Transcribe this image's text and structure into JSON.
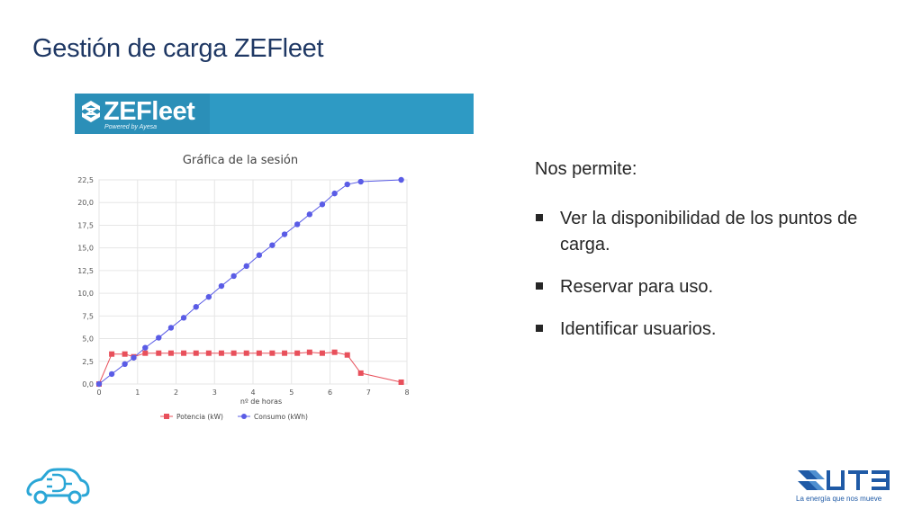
{
  "slide": {
    "title": "Gestión de carga ZEFleet"
  },
  "logo": {
    "brand": "ZEFleet",
    "tagline": "Powered by Ayesa"
  },
  "content": {
    "intro": "Nos permite:",
    "bullets": [
      "Ver la disponibilidad de los puntos de carga.",
      "Reservar para uso.",
      "Identificar usuarios."
    ]
  },
  "footer": {
    "company_logo": "UTE",
    "company_tagline": "La energía que nos mueve"
  },
  "colors": {
    "title": "#1f3864",
    "banner": "#2e9ac4",
    "potencia": "#e8505b",
    "consumo": "#5a5ce6"
  },
  "chart_data": {
    "type": "line",
    "title": "Gráfica de la sesión",
    "xlabel": "nº de horas",
    "ylabel": "",
    "xlim": [
      0,
      8
    ],
    "ylim": [
      0,
      22.5
    ],
    "xticks": [
      "0",
      "1",
      "2",
      "3",
      "4",
      "5",
      "6",
      "7",
      "8"
    ],
    "yticks": [
      "0,0",
      "2,5",
      "5,0",
      "7,5",
      "10,0",
      "12,5",
      "15,0",
      "17,5",
      "20,0",
      "22,5"
    ],
    "grid": true,
    "legend_position": "bottom",
    "series": [
      {
        "name": "Potencia (kW)",
        "marker": "square",
        "color": "#e8505b",
        "x": [
          0,
          0.33,
          0.67,
          0.9,
          1.2,
          1.55,
          1.87,
          2.2,
          2.52,
          2.85,
          3.18,
          3.5,
          3.83,
          4.16,
          4.5,
          4.82,
          5.15,
          5.47,
          5.8,
          6.12,
          6.45,
          6.8,
          7.85
        ],
        "y": [
          0,
          3.3,
          3.3,
          3.0,
          3.4,
          3.4,
          3.4,
          3.4,
          3.4,
          3.4,
          3.4,
          3.4,
          3.4,
          3.4,
          3.4,
          3.4,
          3.4,
          3.5,
          3.4,
          3.5,
          3.2,
          1.2,
          0.2
        ]
      },
      {
        "name": "Consumo (kWh)",
        "marker": "circle",
        "color": "#5a5ce6",
        "x": [
          0,
          0.33,
          0.67,
          0.9,
          1.2,
          1.55,
          1.87,
          2.2,
          2.52,
          2.85,
          3.18,
          3.5,
          3.83,
          4.16,
          4.5,
          4.82,
          5.15,
          5.47,
          5.8,
          6.12,
          6.45,
          6.8,
          7.85
        ],
        "y": [
          0,
          1.1,
          2.2,
          2.9,
          4.0,
          5.1,
          6.2,
          7.3,
          8.5,
          9.6,
          10.8,
          11.9,
          13.0,
          14.2,
          15.3,
          16.5,
          17.6,
          18.7,
          19.8,
          21.0,
          22.0,
          22.3,
          22.5
        ]
      }
    ]
  }
}
